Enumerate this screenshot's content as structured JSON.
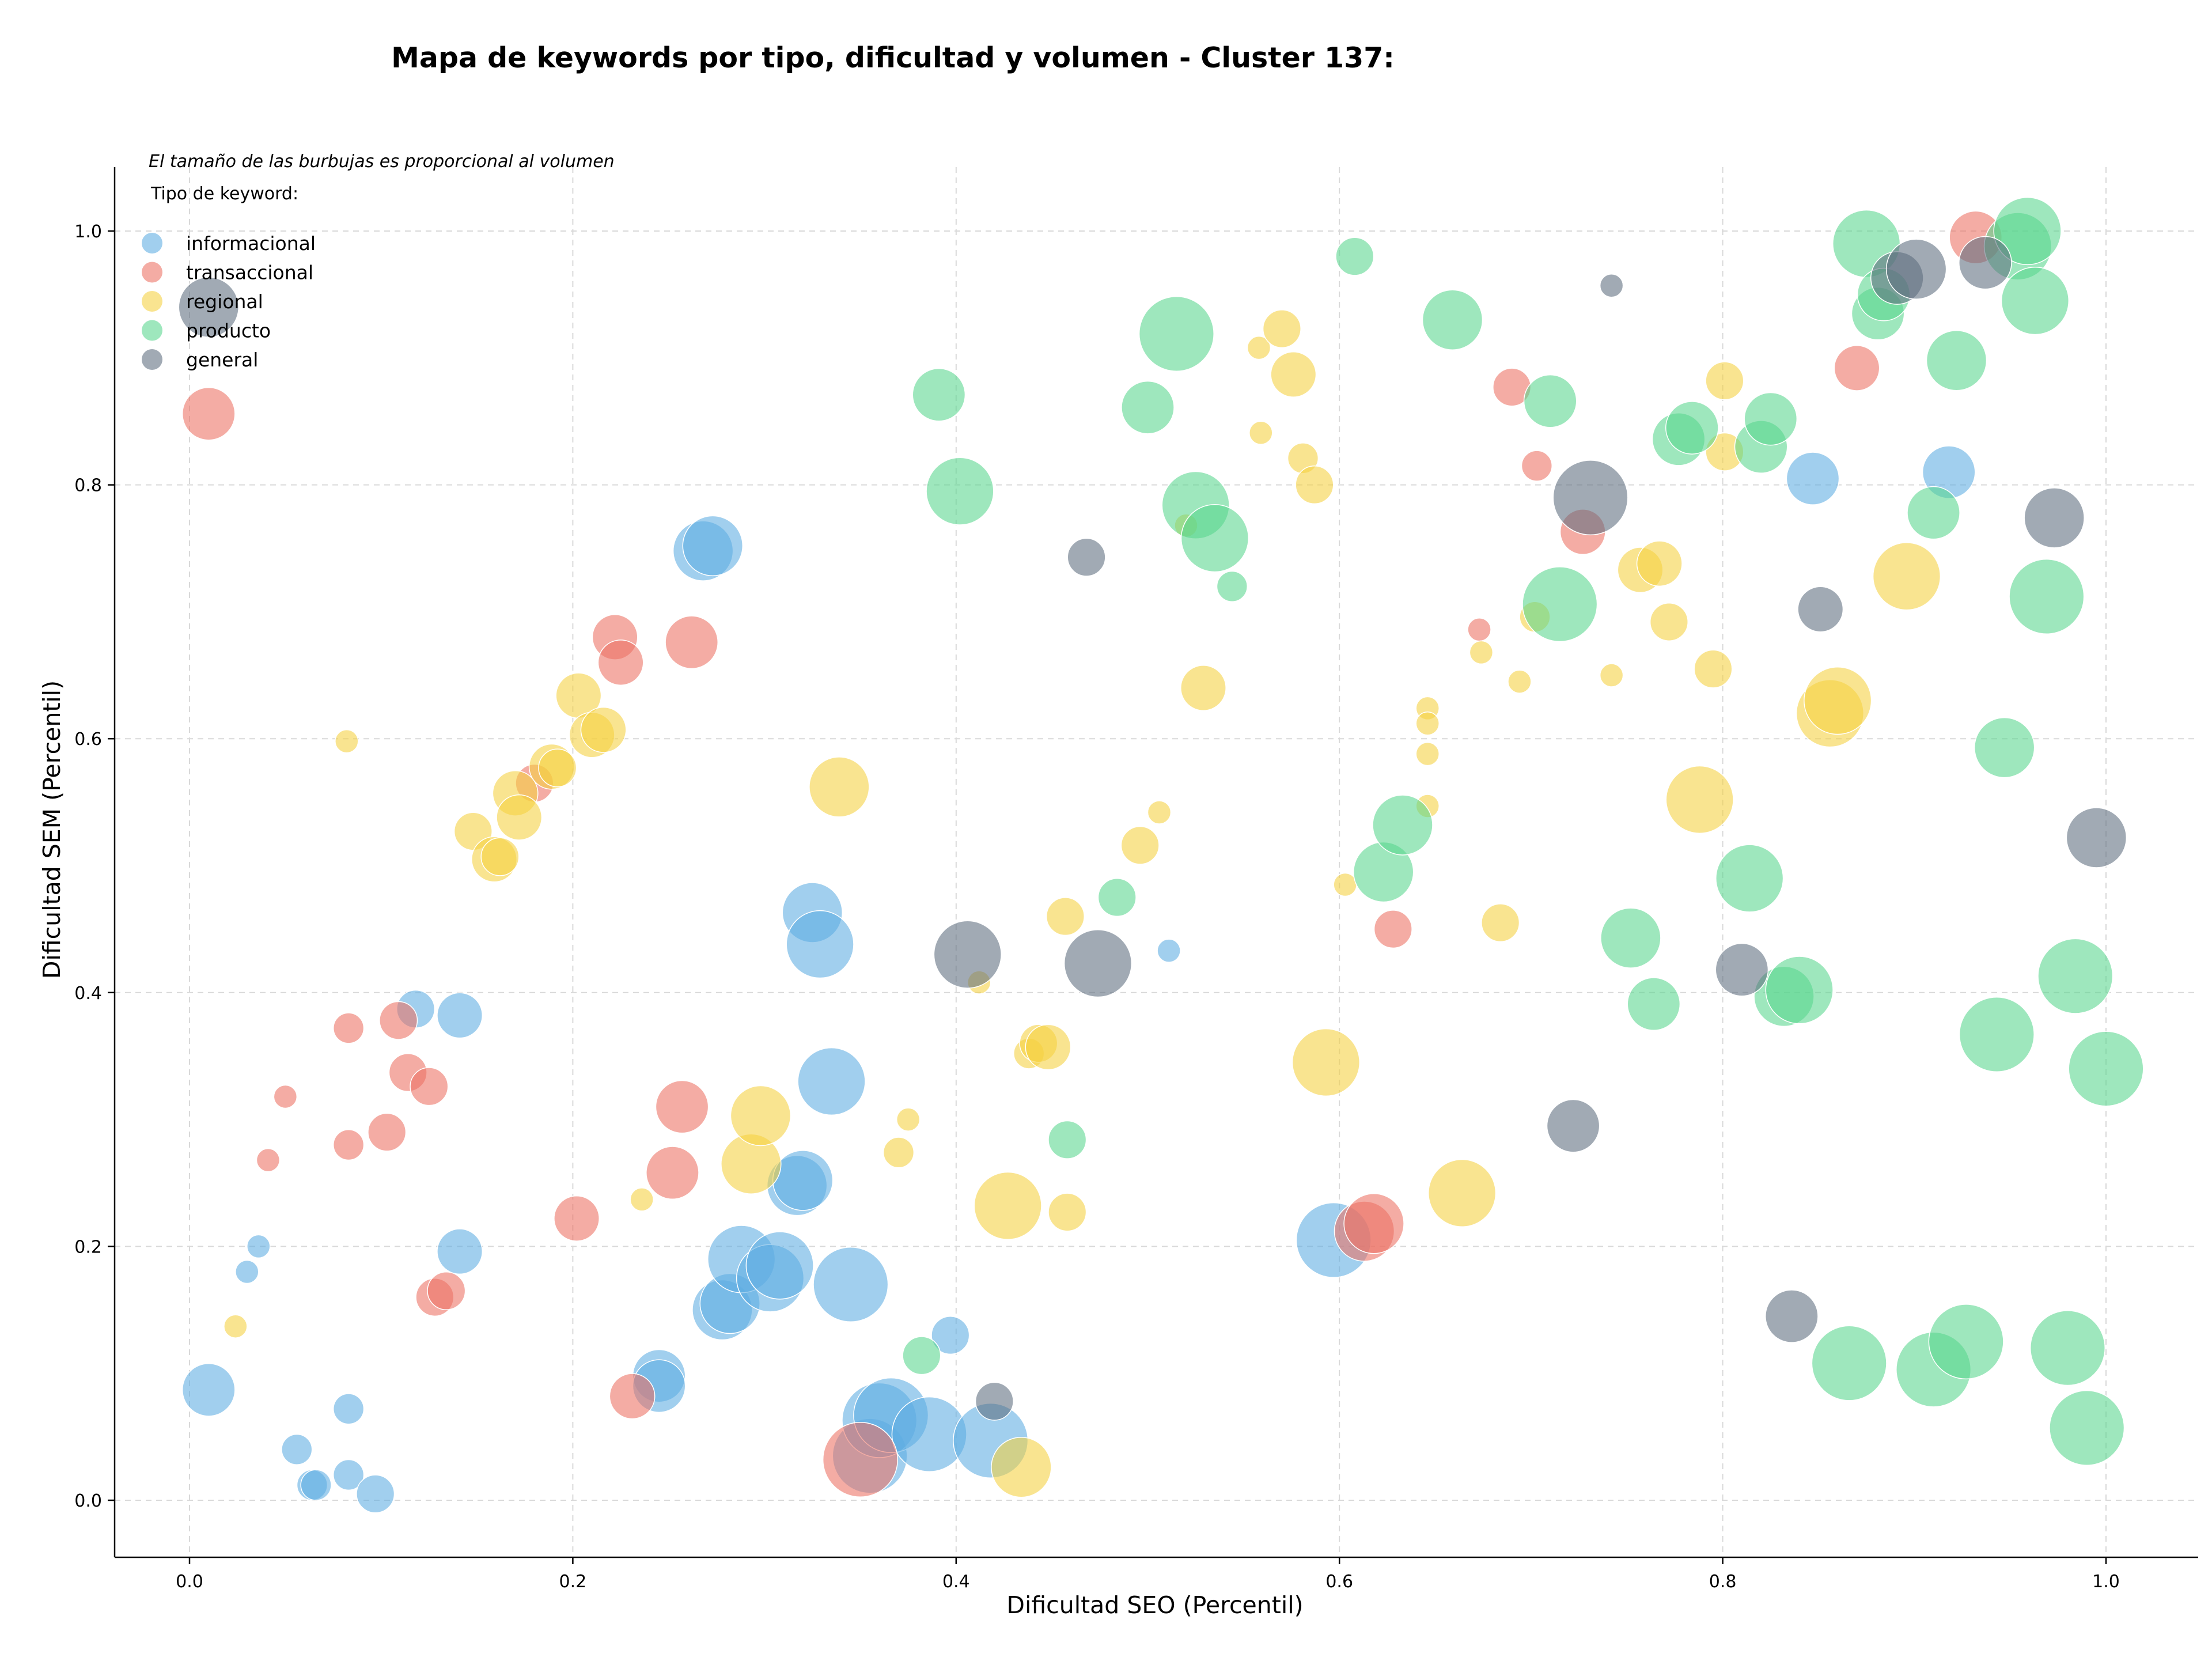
{
  "chart_data": {
    "type": "scatter",
    "title": "Mapa de keywords por tipo, dificultad y volumen - Cluster 137:",
    "xlabel": "Dificultad SEO (Percentil)",
    "ylabel": "Dificultad SEM (Percentil)",
    "xlim": [
      -0.04,
      1.05
    ],
    "ylim": [
      -0.045,
      1.05
    ],
    "xticks": [
      "0.0",
      "0.2",
      "0.4",
      "0.6",
      "0.8",
      "1.0"
    ],
    "yticks": [
      "0.0",
      "0.2",
      "0.4",
      "0.6",
      "0.8",
      "1.0"
    ],
    "grid": true,
    "legend": {
      "placement": "top-left",
      "note": "El tamaño de las burbujas es proporcional al volumen",
      "title": "Tipo de keyword:"
    },
    "series": [
      {
        "name": "informacional",
        "color": "#5DADE2",
        "points": [
          {
            "x": 0.01,
            "y": 0.087,
            "v": 5
          },
          {
            "x": 0.03,
            "y": 0.18,
            "v": 1
          },
          {
            "x": 0.036,
            "y": 0.2,
            "v": 1
          },
          {
            "x": 0.056,
            "y": 0.04,
            "v": 2
          },
          {
            "x": 0.064,
            "y": 0.012,
            "v": 2
          },
          {
            "x": 0.066,
            "y": 0.012,
            "v": 2
          },
          {
            "x": 0.083,
            "y": 0.072,
            "v": 2
          },
          {
            "x": 0.083,
            "y": 0.02,
            "v": 2
          },
          {
            "x": 0.097,
            "y": 0.005,
            "v": 3
          },
          {
            "x": 0.118,
            "y": 0.387,
            "v": 3
          },
          {
            "x": 0.141,
            "y": 0.382,
            "v": 4
          },
          {
            "x": 0.141,
            "y": 0.196,
            "v": 4
          },
          {
            "x": 0.245,
            "y": 0.098,
            "v": 5
          },
          {
            "x": 0.245,
            "y": 0.09,
            "v": 5
          },
          {
            "x": 0.268,
            "y": 0.748,
            "v": 6
          },
          {
            "x": 0.273,
            "y": 0.752,
            "v": 6
          },
          {
            "x": 0.278,
            "y": 0.15,
            "v": 6
          },
          {
            "x": 0.282,
            "y": 0.155,
            "v": 6
          },
          {
            "x": 0.288,
            "y": 0.19,
            "v": 7
          },
          {
            "x": 0.303,
            "y": 0.175,
            "v": 7
          },
          {
            "x": 0.308,
            "y": 0.185,
            "v": 7
          },
          {
            "x": 0.317,
            "y": 0.248,
            "v": 6
          },
          {
            "x": 0.32,
            "y": 0.252,
            "v": 6
          },
          {
            "x": 0.325,
            "y": 0.463,
            "v": 6
          },
          {
            "x": 0.329,
            "y": 0.438,
            "v": 7
          },
          {
            "x": 0.335,
            "y": 0.33,
            "v": 7
          },
          {
            "x": 0.345,
            "y": 0.17,
            "v": 8
          },
          {
            "x": 0.355,
            "y": 0.035,
            "v": 8
          },
          {
            "x": 0.36,
            "y": 0.063,
            "v": 8
          },
          {
            "x": 0.366,
            "y": 0.067,
            "v": 8
          },
          {
            "x": 0.386,
            "y": 0.052,
            "v": 8
          },
          {
            "x": 0.397,
            "y": 0.13,
            "v": 3
          },
          {
            "x": 0.418,
            "y": 0.047,
            "v": 8
          },
          {
            "x": 0.511,
            "y": 0.433,
            "v": 1
          },
          {
            "x": 0.597,
            "y": 0.205,
            "v": 8
          },
          {
            "x": 0.847,
            "y": 0.805,
            "v": 5
          },
          {
            "x": 0.918,
            "y": 0.81,
            "v": 5
          }
        ]
      },
      {
        "name": "transaccional",
        "color": "#EC7063",
        "points": [
          {
            "x": 0.01,
            "y": 0.856,
            "v": 5
          },
          {
            "x": 0.041,
            "y": 0.268,
            "v": 1
          },
          {
            "x": 0.05,
            "y": 0.318,
            "v": 1
          },
          {
            "x": 0.083,
            "y": 0.372,
            "v": 2
          },
          {
            "x": 0.083,
            "y": 0.28,
            "v": 2
          },
          {
            "x": 0.103,
            "y": 0.29,
            "v": 3
          },
          {
            "x": 0.109,
            "y": 0.378,
            "v": 3
          },
          {
            "x": 0.114,
            "y": 0.337,
            "v": 3
          },
          {
            "x": 0.125,
            "y": 0.326,
            "v": 3
          },
          {
            "x": 0.128,
            "y": 0.16,
            "v": 3
          },
          {
            "x": 0.134,
            "y": 0.165,
            "v": 3
          },
          {
            "x": 0.18,
            "y": 0.565,
            "v": 3
          },
          {
            "x": 0.202,
            "y": 0.222,
            "v": 4
          },
          {
            "x": 0.222,
            "y": 0.68,
            "v": 4
          },
          {
            "x": 0.225,
            "y": 0.66,
            "v": 4
          },
          {
            "x": 0.231,
            "y": 0.082,
            "v": 4
          },
          {
            "x": 0.252,
            "y": 0.258,
            "v": 5
          },
          {
            "x": 0.257,
            "y": 0.31,
            "v": 5
          },
          {
            "x": 0.262,
            "y": 0.676,
            "v": 5
          },
          {
            "x": 0.35,
            "y": 0.032,
            "v": 8
          },
          {
            "x": 0.613,
            "y": 0.212,
            "v": 6
          },
          {
            "x": 0.618,
            "y": 0.218,
            "v": 6
          },
          {
            "x": 0.628,
            "y": 0.45,
            "v": 3
          },
          {
            "x": 0.673,
            "y": 0.686,
            "v": 1
          },
          {
            "x": 0.69,
            "y": 0.877,
            "v": 3
          },
          {
            "x": 0.703,
            "y": 0.815,
            "v": 2
          },
          {
            "x": 0.727,
            "y": 0.763,
            "v": 4
          },
          {
            "x": 0.87,
            "y": 0.892,
            "v": 4
          },
          {
            "x": 0.932,
            "y": 0.995,
            "v": 5
          }
        ]
      },
      {
        "name": "regional",
        "color": "#F4D03F",
        "points": [
          {
            "x": 0.024,
            "y": 0.137,
            "v": 1
          },
          {
            "x": 0.082,
            "y": 0.598,
            "v": 1
          },
          {
            "x": 0.148,
            "y": 0.527,
            "v": 3
          },
          {
            "x": 0.159,
            "y": 0.505,
            "v": 4
          },
          {
            "x": 0.162,
            "y": 0.507,
            "v": 3
          },
          {
            "x": 0.17,
            "y": 0.557,
            "v": 4
          },
          {
            "x": 0.172,
            "y": 0.538,
            "v": 4
          },
          {
            "x": 0.189,
            "y": 0.578,
            "v": 4
          },
          {
            "x": 0.192,
            "y": 0.577,
            "v": 3
          },
          {
            "x": 0.203,
            "y": 0.634,
            "v": 4
          },
          {
            "x": 0.21,
            "y": 0.603,
            "v": 4
          },
          {
            "x": 0.216,
            "y": 0.607,
            "v": 4
          },
          {
            "x": 0.236,
            "y": 0.237,
            "v": 1
          },
          {
            "x": 0.293,
            "y": 0.265,
            "v": 6
          },
          {
            "x": 0.298,
            "y": 0.303,
            "v": 6
          },
          {
            "x": 0.339,
            "y": 0.562,
            "v": 6
          },
          {
            "x": 0.37,
            "y": 0.274,
            "v": 2
          },
          {
            "x": 0.375,
            "y": 0.3,
            "v": 1
          },
          {
            "x": 0.412,
            "y": 0.408,
            "v": 1
          },
          {
            "x": 0.427,
            "y": 0.232,
            "v": 7
          },
          {
            "x": 0.434,
            "y": 0.026,
            "v": 6
          },
          {
            "x": 0.438,
            "y": 0.352,
            "v": 2
          },
          {
            "x": 0.443,
            "y": 0.36,
            "v": 3
          },
          {
            "x": 0.448,
            "y": 0.357,
            "v": 4
          },
          {
            "x": 0.457,
            "y": 0.46,
            "v": 3
          },
          {
            "x": 0.458,
            "y": 0.227,
            "v": 3
          },
          {
            "x": 0.496,
            "y": 0.516,
            "v": 3
          },
          {
            "x": 0.506,
            "y": 0.542,
            "v": 1
          },
          {
            "x": 0.52,
            "y": 0.768,
            "v": 1
          },
          {
            "x": 0.529,
            "y": 0.64,
            "v": 4
          },
          {
            "x": 0.558,
            "y": 0.908,
            "v": 1
          },
          {
            "x": 0.559,
            "y": 0.841,
            "v": 1
          },
          {
            "x": 0.57,
            "y": 0.923,
            "v": 3
          },
          {
            "x": 0.576,
            "y": 0.887,
            "v": 4
          },
          {
            "x": 0.581,
            "y": 0.821,
            "v": 2
          },
          {
            "x": 0.587,
            "y": 0.8,
            "v": 3
          },
          {
            "x": 0.593,
            "y": 0.345,
            "v": 7
          },
          {
            "x": 0.603,
            "y": 0.485,
            "v": 1
          },
          {
            "x": 0.646,
            "y": 0.624,
            "v": 1
          },
          {
            "x": 0.646,
            "y": 0.612,
            "v": 1
          },
          {
            "x": 0.646,
            "y": 0.588,
            "v": 1
          },
          {
            "x": 0.646,
            "y": 0.547,
            "v": 1
          },
          {
            "x": 0.664,
            "y": 0.242,
            "v": 7
          },
          {
            "x": 0.674,
            "y": 0.668,
            "v": 1
          },
          {
            "x": 0.684,
            "y": 0.455,
            "v": 3
          },
          {
            "x": 0.694,
            "y": 0.645,
            "v": 1
          },
          {
            "x": 0.702,
            "y": 0.696,
            "v": 2
          },
          {
            "x": 0.742,
            "y": 0.65,
            "v": 1
          },
          {
            "x": 0.757,
            "y": 0.733,
            "v": 4
          },
          {
            "x": 0.767,
            "y": 0.738,
            "v": 4
          },
          {
            "x": 0.772,
            "y": 0.692,
            "v": 3
          },
          {
            "x": 0.788,
            "y": 0.552,
            "v": 7
          },
          {
            "x": 0.795,
            "y": 0.655,
            "v": 3
          },
          {
            "x": 0.801,
            "y": 0.826,
            "v": 3
          },
          {
            "x": 0.801,
            "y": 0.882,
            "v": 3
          },
          {
            "x": 0.856,
            "y": 0.62,
            "v": 7
          },
          {
            "x": 0.86,
            "y": 0.63,
            "v": 7
          },
          {
            "x": 0.896,
            "y": 0.728,
            "v": 7
          }
        ]
      },
      {
        "name": "producto",
        "color": "#58D68D",
        "points": [
          {
            "x": 0.382,
            "y": 0.114,
            "v": 3
          },
          {
            "x": 0.391,
            "y": 0.871,
            "v": 5
          },
          {
            "x": 0.402,
            "y": 0.795,
            "v": 7
          },
          {
            "x": 0.458,
            "y": 0.284,
            "v": 3
          },
          {
            "x": 0.484,
            "y": 0.475,
            "v": 3
          },
          {
            "x": 0.5,
            "y": 0.861,
            "v": 5
          },
          {
            "x": 0.515,
            "y": 0.919,
            "v": 8
          },
          {
            "x": 0.525,
            "y": 0.784,
            "v": 7
          },
          {
            "x": 0.535,
            "y": 0.758,
            "v": 7
          },
          {
            "x": 0.544,
            "y": 0.72,
            "v": 2
          },
          {
            "x": 0.608,
            "y": 0.98,
            "v": 3
          },
          {
            "x": 0.623,
            "y": 0.495,
            "v": 6
          },
          {
            "x": 0.633,
            "y": 0.532,
            "v": 6
          },
          {
            "x": 0.659,
            "y": 0.93,
            "v": 6
          },
          {
            "x": 0.715,
            "y": 0.706,
            "v": 8
          },
          {
            "x": 0.71,
            "y": 0.866,
            "v": 5
          },
          {
            "x": 0.752,
            "y": 0.443,
            "v": 6
          },
          {
            "x": 0.764,
            "y": 0.391,
            "v": 5
          },
          {
            "x": 0.777,
            "y": 0.836,
            "v": 5
          },
          {
            "x": 0.784,
            "y": 0.845,
            "v": 5
          },
          {
            "x": 0.814,
            "y": 0.49,
            "v": 7
          },
          {
            "x": 0.82,
            "y": 0.83,
            "v": 5
          },
          {
            "x": 0.825,
            "y": 0.852,
            "v": 5
          },
          {
            "x": 0.832,
            "y": 0.397,
            "v": 6
          },
          {
            "x": 0.84,
            "y": 0.402,
            "v": 7
          },
          {
            "x": 0.866,
            "y": 0.108,
            "v": 8
          },
          {
            "x": 0.875,
            "y": 0.99,
            "v": 7
          },
          {
            "x": 0.881,
            "y": 0.935,
            "v": 5
          },
          {
            "x": 0.884,
            "y": 0.95,
            "v": 5
          },
          {
            "x": 0.91,
            "y": 0.778,
            "v": 5
          },
          {
            "x": 0.91,
            "y": 0.103,
            "v": 8
          },
          {
            "x": 0.922,
            "y": 0.898,
            "v": 6
          },
          {
            "x": 0.927,
            "y": 0.125,
            "v": 8
          },
          {
            "x": 0.943,
            "y": 0.367,
            "v": 8
          },
          {
            "x": 0.947,
            "y": 0.593,
            "v": 6
          },
          {
            "x": 0.954,
            "y": 0.988,
            "v": 7
          },
          {
            "x": 0.959,
            "y": 1.0,
            "v": 7
          },
          {
            "x": 0.963,
            "y": 0.945,
            "v": 7
          },
          {
            "x": 0.969,
            "y": 0.712,
            "v": 8
          },
          {
            "x": 0.98,
            "y": 0.12,
            "v": 8
          },
          {
            "x": 0.984,
            "y": 0.413,
            "v": 8
          },
          {
            "x": 0.99,
            "y": 0.057,
            "v": 8
          },
          {
            "x": 1.0,
            "y": 0.34,
            "v": 8
          }
        ]
      },
      {
        "name": "general",
        "color": "#5D6D7E",
        "points": [
          {
            "x": 0.01,
            "y": 0.94,
            "v": 6
          },
          {
            "x": 0.406,
            "y": 0.43,
            "v": 7
          },
          {
            "x": 0.42,
            "y": 0.078,
            "v": 3
          },
          {
            "x": 0.468,
            "y": 0.743,
            "v": 3
          },
          {
            "x": 0.474,
            "y": 0.423,
            "v": 7
          },
          {
            "x": 0.722,
            "y": 0.295,
            "v": 5
          },
          {
            "x": 0.731,
            "y": 0.79,
            "v": 8
          },
          {
            "x": 0.742,
            "y": 0.957,
            "v": 1
          },
          {
            "x": 0.81,
            "y": 0.418,
            "v": 5
          },
          {
            "x": 0.836,
            "y": 0.145,
            "v": 5
          },
          {
            "x": 0.851,
            "y": 0.702,
            "v": 4
          },
          {
            "x": 0.891,
            "y": 0.963,
            "v": 5
          },
          {
            "x": 0.901,
            "y": 0.97,
            "v": 6
          },
          {
            "x": 0.937,
            "y": 0.975,
            "v": 5
          },
          {
            "x": 0.973,
            "y": 0.774,
            "v": 6
          },
          {
            "x": 0.995,
            "y": 0.522,
            "v": 6
          }
        ]
      }
    ]
  }
}
